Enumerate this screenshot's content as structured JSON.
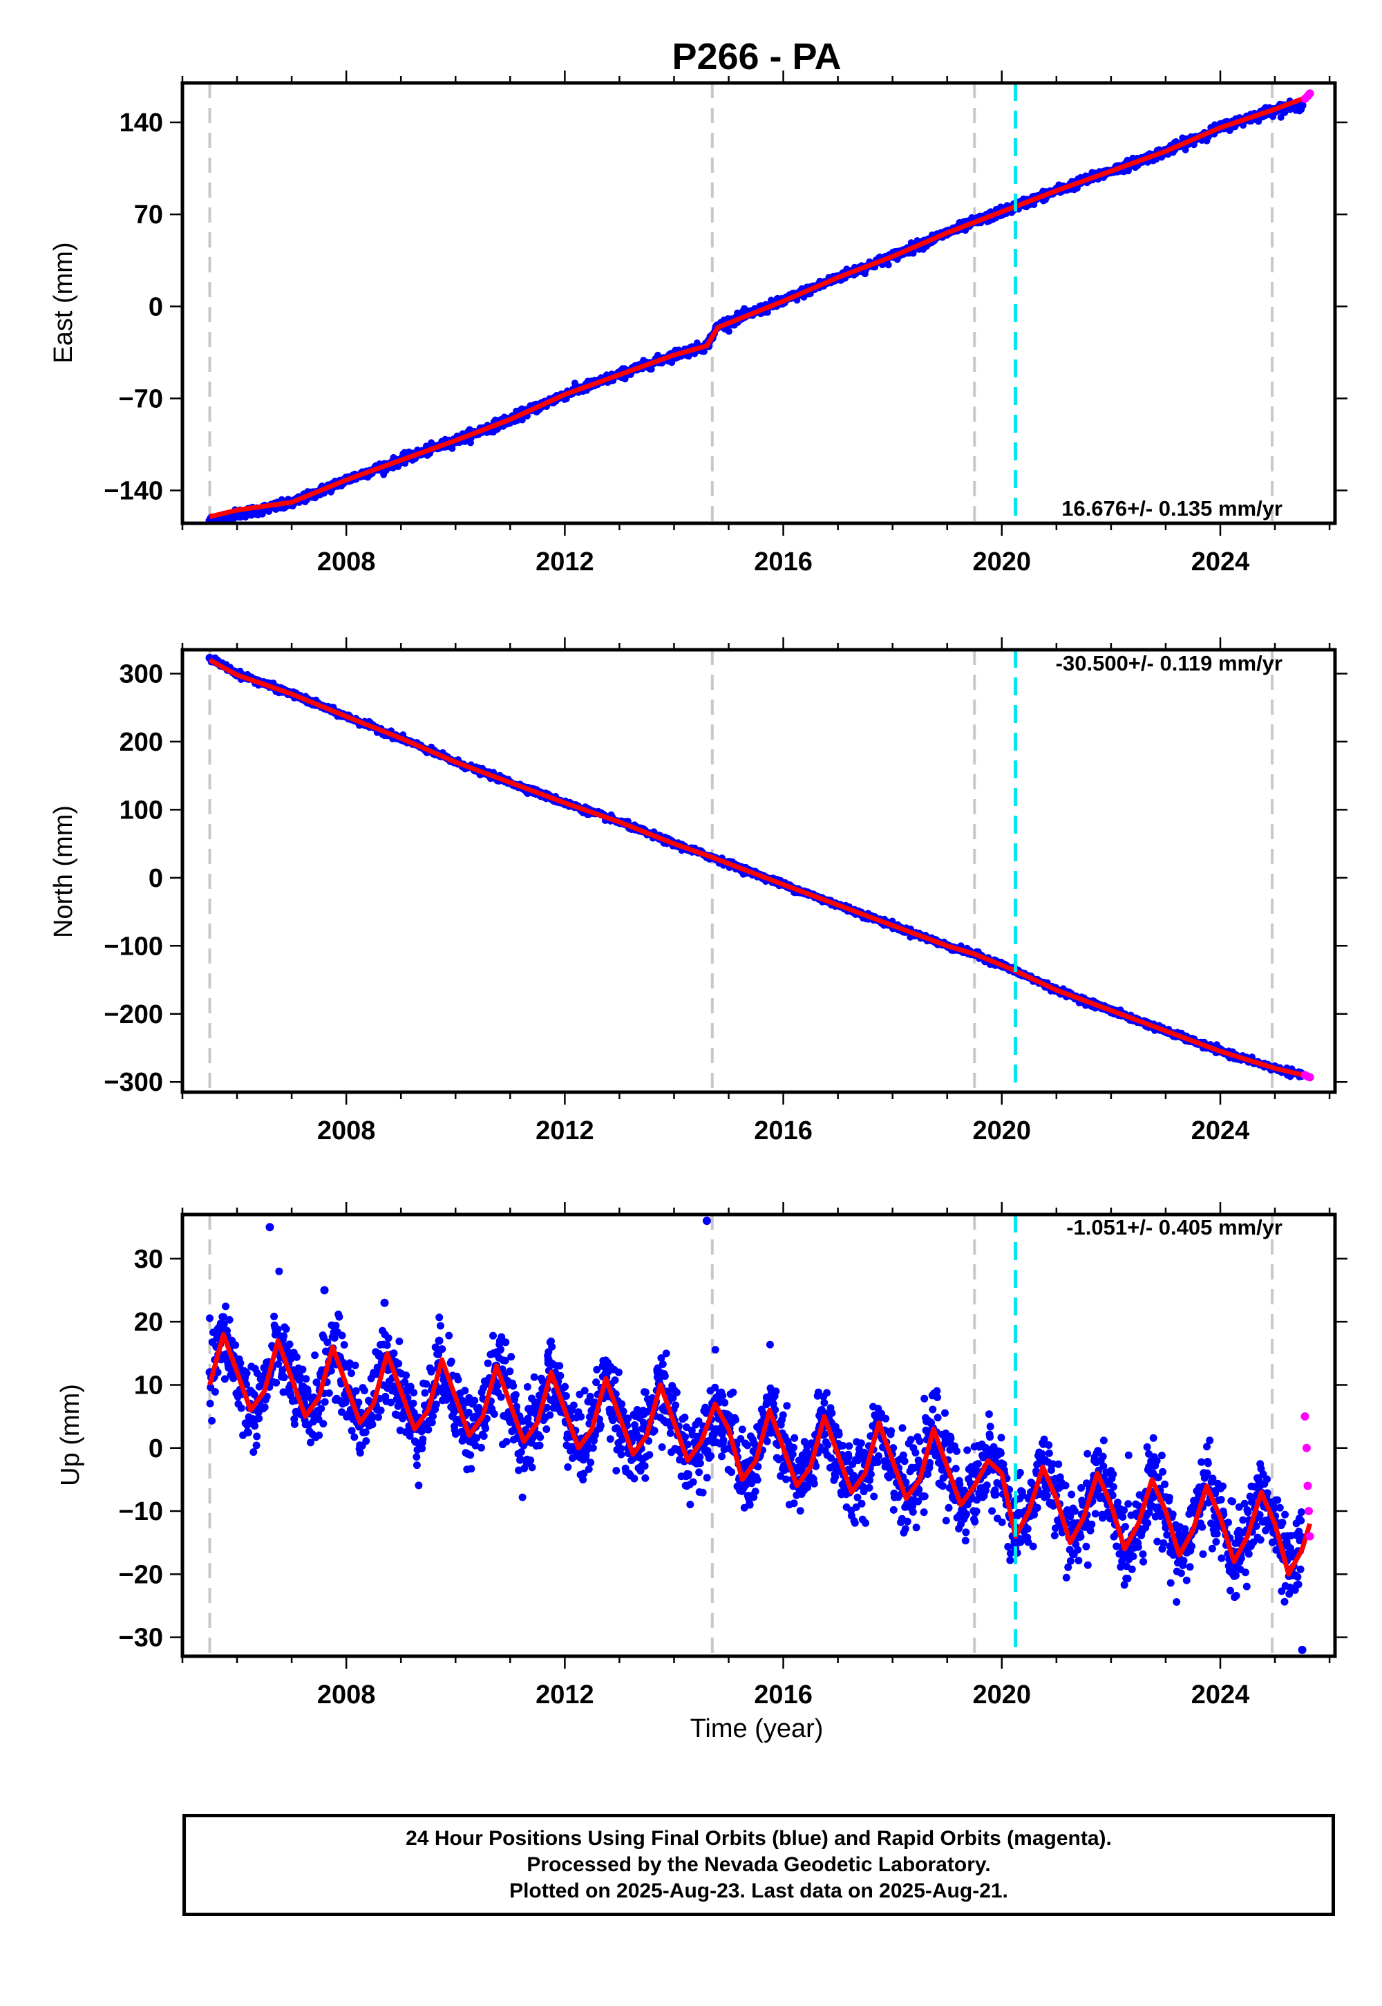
{
  "title": "P266 - PA",
  "colors": {
    "final_orbits": "#0000ff",
    "rapid_orbits": "#ff00ff",
    "model_fit": "#ff0000",
    "event_gray": "#c8c8c8",
    "event_cyan": "#00e5ee"
  },
  "x_axis": {
    "label": "Time (year)",
    "range": [
      2005.0,
      2026.1
    ],
    "tick_labels": [
      "2008",
      "2012",
      "2016",
      "2020",
      "2024"
    ]
  },
  "events": {
    "gray_dashed_years": [
      2005.5,
      2014.7,
      2019.5,
      2024.95
    ],
    "cyan_dashed_year": 2020.25
  },
  "footer": {
    "lines": [
      "24 Hour Positions Using Final Orbits (blue) and Rapid Orbits (magenta).",
      "Processed by the Nevada Geodetic Laboratory.",
      "Plotted on 2025-Aug-23. Last data on 2025-Aug-21."
    ]
  },
  "chart_data": [
    {
      "type": "scatter",
      "ylabel": "East (mm)",
      "ylim": [
        -165,
        170
      ],
      "y_ticks": [
        -140,
        -70,
        0,
        70,
        140
      ],
      "y_tick_labels": [
        "-140",
        "-70",
        "0",
        "70",
        "140"
      ],
      "rate_text": "16.676+/- 0.135 mm/yr",
      "rate_position": "bottom-right",
      "series": [
        {
          "name": "Final Orbits",
          "color": "#0000ff",
          "x": [
            2005.5,
            2006,
            2007,
            2008,
            2009,
            2010,
            2011,
            2012,
            2013,
            2014,
            2014.6,
            2014.8,
            2016,
            2017,
            2018,
            2019,
            2020,
            2021,
            2022,
            2023,
            2024,
            2025,
            2025.5
          ],
          "y": [
            -163,
            -158,
            -150,
            -132,
            -117,
            -102,
            -86,
            -67,
            -52,
            -37,
            -30,
            -15,
            4,
            22,
            38,
            56,
            72,
            88,
            103,
            118,
            136,
            150,
            153
          ]
        },
        {
          "name": "Rapid Orbits",
          "color": "#ff00ff",
          "x": [
            2025.55,
            2025.6,
            2025.64
          ],
          "y": [
            158,
            160,
            162
          ]
        },
        {
          "name": "Model",
          "color": "#ff0000",
          "x": [
            2005.5,
            2006,
            2007,
            2008,
            2009,
            2010,
            2011,
            2012,
            2013,
            2014,
            2014.6,
            2014.8,
            2016,
            2017,
            2018,
            2019,
            2020,
            2021,
            2022,
            2023,
            2024,
            2025,
            2025.64
          ],
          "y": [
            -160,
            -155,
            -149,
            -132,
            -117,
            -102,
            -86,
            -67,
            -52,
            -37,
            -30,
            -16,
            4,
            22,
            38,
            56,
            72,
            88,
            103,
            118,
            136,
            150,
            160
          ]
        }
      ]
    },
    {
      "type": "scatter",
      "ylabel": "North (mm)",
      "ylim": [
        -315,
        335
      ],
      "y_ticks": [
        -300,
        -200,
        -100,
        0,
        100,
        200,
        300
      ],
      "y_tick_labels": [
        "-300",
        "-200",
        "-100",
        "0",
        "100",
        "200",
        "300"
      ],
      "rate_text": "-30.500+/- 0.119 mm/yr",
      "rate_position": "top-right",
      "series": [
        {
          "name": "Final Orbits",
          "color": "#0000ff",
          "x": [
            2005.5,
            2006,
            2007,
            2008,
            2009,
            2010,
            2011,
            2012,
            2013,
            2014,
            2014.7,
            2016,
            2017,
            2018,
            2019,
            2019.5,
            2020.2,
            2021,
            2022,
            2023,
            2024,
            2025,
            2025.5
          ],
          "y": [
            323,
            300,
            270,
            237,
            205,
            170,
            140,
            110,
            82,
            50,
            30,
            -10,
            -40,
            -70,
            -100,
            -112,
            -135,
            -165,
            -195,
            -225,
            -255,
            -280,
            -290
          ]
        },
        {
          "name": "Rapid Orbits",
          "color": "#ff00ff",
          "x": [
            2025.55,
            2025.6,
            2025.64
          ],
          "y": [
            -290,
            -292,
            -293
          ]
        },
        {
          "name": "Model",
          "color": "#ff0000",
          "x": [
            2005.5,
            2006,
            2007,
            2008,
            2009,
            2010,
            2011,
            2012,
            2013,
            2014,
            2014.7,
            2016,
            2017,
            2018,
            2019,
            2019.5,
            2020.2,
            2021,
            2022,
            2023,
            2024,
            2025,
            2025.64
          ],
          "y": [
            320,
            298,
            270,
            237,
            205,
            170,
            140,
            110,
            82,
            50,
            30,
            -10,
            -40,
            -70,
            -100,
            -112,
            -135,
            -165,
            -195,
            -225,
            -255,
            -280,
            -292
          ]
        }
      ]
    },
    {
      "type": "scatter",
      "ylabel": "Up (mm)",
      "ylim": [
        -33,
        37
      ],
      "y_ticks": [
        -30,
        -20,
        -10,
        0,
        10,
        20,
        30
      ],
      "y_tick_labels": [
        "-30",
        "-20",
        "-10",
        "0",
        "10",
        "20",
        "30"
      ],
      "rate_text": "-1.051+/- 0.405 mm/yr",
      "rate_position": "top-right",
      "series": [
        {
          "name": "Final Orbits",
          "color": "#0000ff",
          "x": [
            2005.5,
            2005.9,
            2006.4,
            2006.6,
            2006.9,
            2007.6,
            2008.2,
            2008.7,
            2009.3,
            2009.7,
            2010.3,
            2010.7,
            2011.3,
            2011.7,
            2012.3,
            2012.7,
            2013.3,
            2013.7,
            2014.3,
            2014.6,
            2014.9,
            2015.7,
            2016.3,
            2016.7,
            2017.3,
            2017.7,
            2018.3,
            2018.7,
            2019.3,
            2019.7,
            2020.2,
            2020.7,
            2021.3,
            2021.7,
            2022.3,
            2022.7,
            2023.3,
            2023.7,
            2024.3,
            2024.7,
            2025.3,
            2025.5
          ],
          "y": [
            12,
            17,
            6,
            35,
            16,
            25,
            4,
            23,
            3,
            17,
            2,
            15,
            1,
            14,
            0,
            13,
            -1,
            12,
            -2,
            36,
            4,
            8,
            -5,
            6,
            -6,
            5,
            -7,
            4,
            -9,
            0,
            -14,
            -1,
            -14,
            -2,
            -15,
            -3,
            -16,
            -4,
            -17,
            -5,
            -20,
            -32
          ]
        },
        {
          "name": "Rapid Orbits",
          "color": "#ff00ff",
          "x": [
            2025.55,
            2025.58,
            2025.6,
            2025.62,
            2025.64
          ],
          "y": [
            5,
            0,
            -6,
            -10,
            -14
          ]
        },
        {
          "name": "Model",
          "color": "#ff0000",
          "x": [
            2005.5,
            2005.75,
            2006.0,
            2006.25,
            2006.5,
            2006.75,
            2007.0,
            2007.25,
            2007.5,
            2007.75,
            2008.0,
            2008.25,
            2008.5,
            2008.75,
            2009.0,
            2009.25,
            2009.5,
            2009.75,
            2010.0,
            2010.25,
            2010.5,
            2010.75,
            2011.0,
            2011.25,
            2011.5,
            2011.75,
            2012.0,
            2012.25,
            2012.5,
            2012.75,
            2013.0,
            2013.25,
            2013.5,
            2013.75,
            2014.0,
            2014.25,
            2014.5,
            2014.75,
            2015.0,
            2015.25,
            2015.5,
            2015.75,
            2016.0,
            2016.25,
            2016.5,
            2016.75,
            2017.0,
            2017.25,
            2017.5,
            2017.75,
            2018.0,
            2018.25,
            2018.5,
            2018.75,
            2019.0,
            2019.25,
            2019.5,
            2019.75,
            2020.0,
            2020.25,
            2020.5,
            2020.75,
            2021.0,
            2021.25,
            2021.5,
            2021.75,
            2022.0,
            2022.25,
            2022.5,
            2022.75,
            2023.0,
            2023.25,
            2023.5,
            2023.75,
            2024.0,
            2024.25,
            2024.5,
            2024.75,
            2025.0,
            2025.25,
            2025.5,
            2025.64
          ],
          "y": [
            10,
            18,
            12,
            6,
            9,
            17,
            11,
            5,
            8,
            16,
            10,
            4,
            7,
            15,
            9,
            3,
            6,
            14,
            8,
            2,
            5,
            13,
            7,
            1,
            4,
            12,
            6,
            0,
            3,
            11,
            5,
            -1,
            2,
            10,
            4,
            -2,
            1,
            7,
            3,
            -5,
            -2,
            6,
            0,
            -6,
            -3,
            5,
            -1,
            -7,
            -4,
            4,
            -2,
            -8,
            -5,
            3,
            -3,
            -9,
            -6,
            -2,
            -4,
            -14,
            -10,
            -3,
            -8,
            -15,
            -11,
            -4,
            -9,
            -16,
            -12,
            -5,
            -10,
            -17,
            -13,
            -6,
            -11,
            -18,
            -14,
            -7,
            -12,
            -20,
            -16,
            -12
          ]
        }
      ]
    }
  ]
}
